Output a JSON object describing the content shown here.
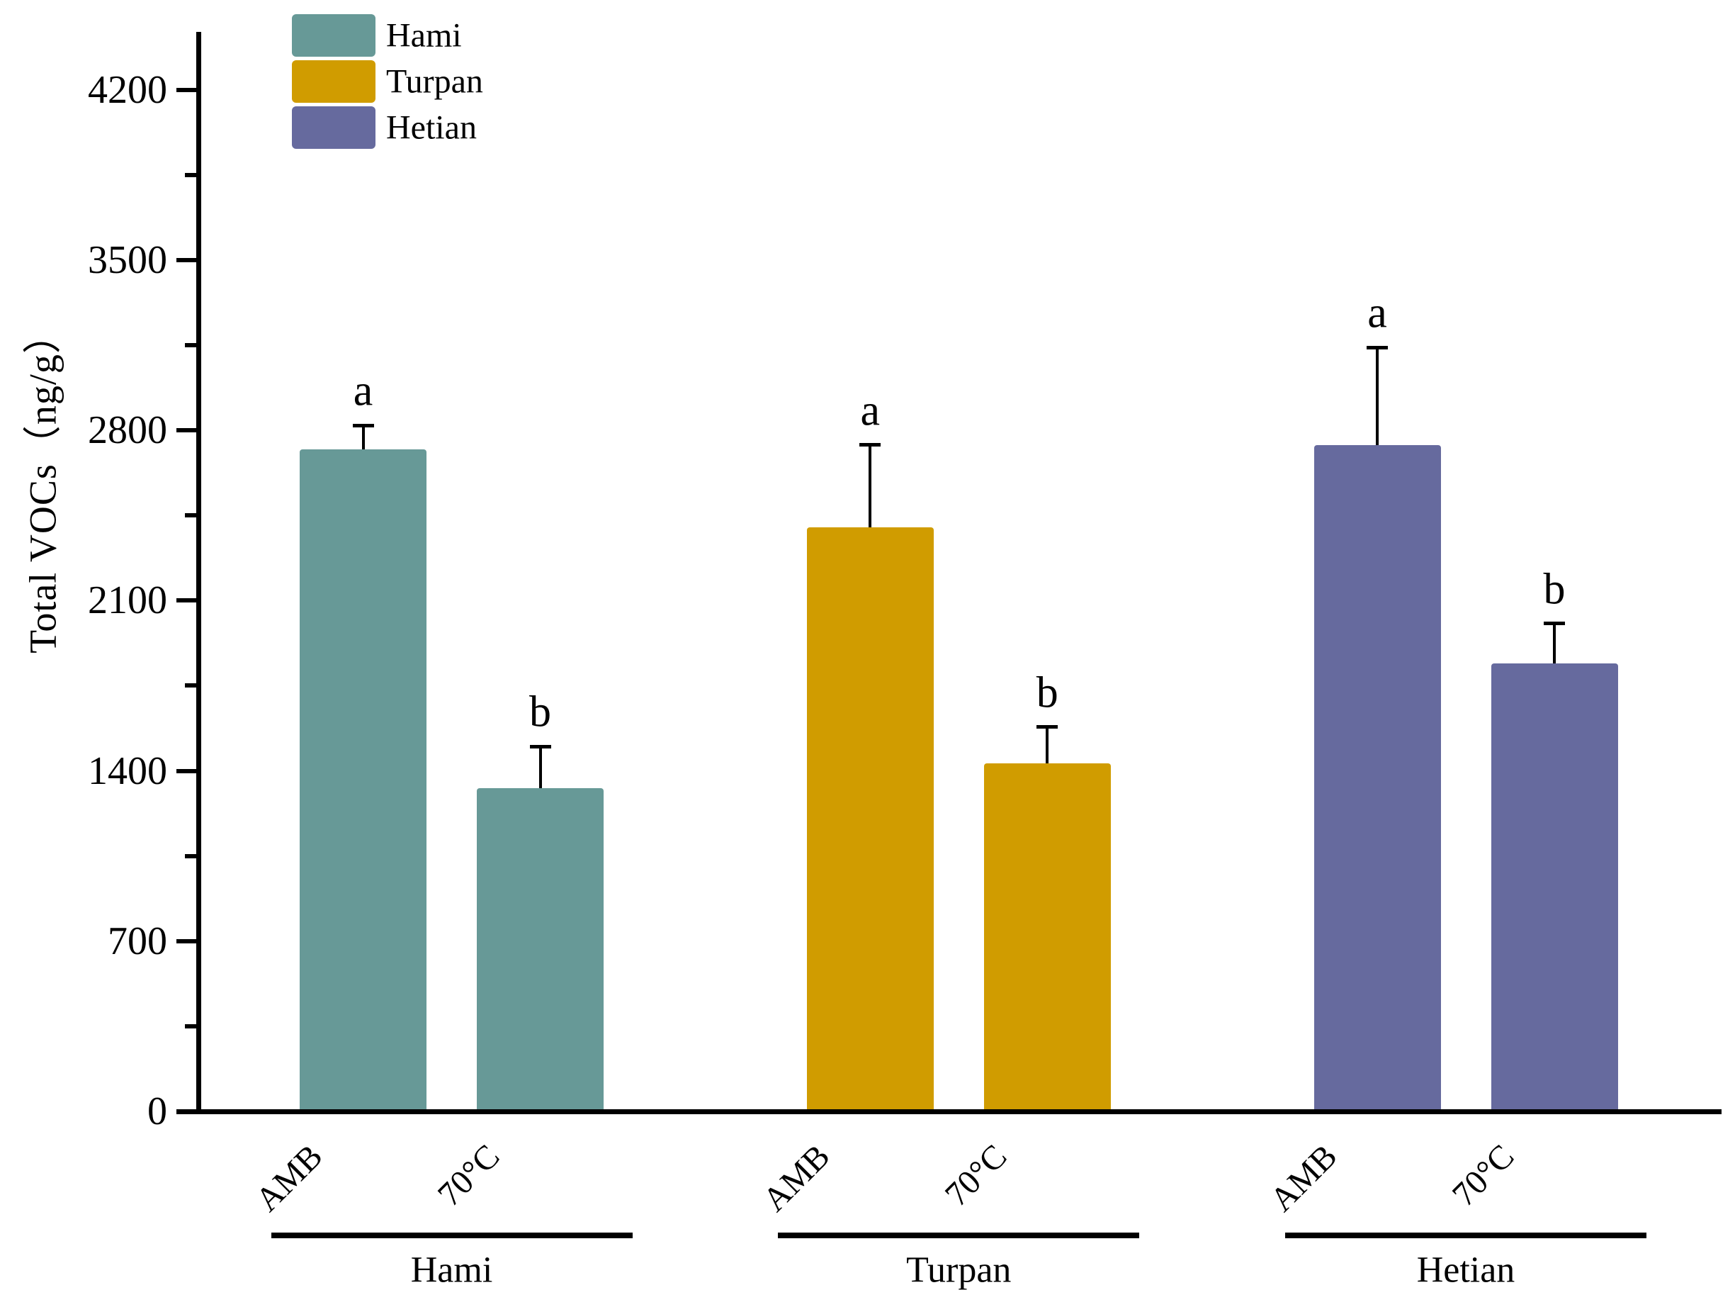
{
  "chart_data": {
    "type": "bar",
    "title": "",
    "ylabel": "Total VOCs（ng/g）",
    "xlabel": "",
    "yticks": [
      0,
      700,
      1400,
      2100,
      2800,
      3500,
      4200
    ],
    "minor_tick_step": 350,
    "ylim": [
      0,
      4438
    ],
    "grid": false,
    "legend_position": "top-left-inside",
    "error_bar_style": "upper-only",
    "axis_color": "#000000",
    "groups": [
      "Hami",
      "Turpan",
      "Hetian"
    ],
    "conditions": [
      "AMB",
      "70°C"
    ],
    "series": [
      {
        "name": "Hami",
        "color": "#679997",
        "points": [
          {
            "condition": "AMB",
            "value": 2720,
            "error": 100,
            "sig": "a"
          },
          {
            "condition": "70°C",
            "value": 1330,
            "error": 170,
            "sig": "b"
          }
        ]
      },
      {
        "name": "Turpan",
        "color": "#D09C00",
        "points": [
          {
            "condition": "AMB",
            "value": 2400,
            "error": 340,
            "sig": "a"
          },
          {
            "condition": "70°C",
            "value": 1430,
            "error": 150,
            "sig": "b"
          }
        ]
      },
      {
        "name": "Hetian",
        "color": "#666A9E",
        "points": [
          {
            "condition": "AMB",
            "value": 2740,
            "error": 400,
            "sig": "a"
          },
          {
            "condition": "70°C",
            "value": 1840,
            "error": 165,
            "sig": "b"
          }
        ]
      }
    ]
  },
  "legend": {
    "items": [
      {
        "label": "Hami",
        "color": "#679997"
      },
      {
        "label": "Turpan",
        "color": "#D09C00"
      },
      {
        "label": "Hetian",
        "color": "#666A9E"
      }
    ]
  }
}
